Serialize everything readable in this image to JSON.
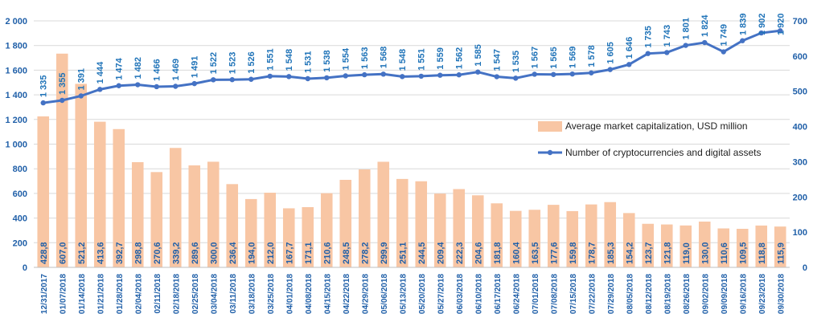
{
  "chart_data": {
    "type": "bar+line",
    "categories": [
      "12/31/2017",
      "01/07/2018",
      "01/14/2018",
      "01/21/2018",
      "01/28/2018",
      "02/04/2018",
      "02/11/2018",
      "02/18/2018",
      "02/25/2018",
      "03/04/2018",
      "03/11/2018",
      "03/18/2018",
      "03/25/2018",
      "04/01/2018",
      "04/08/2018",
      "04/15/2018",
      "04/22/2018",
      "04/29/2018",
      "05/06/2018",
      "05/13/2018",
      "05/20/2018",
      "05/27/2018",
      "06/03/2018",
      "06/10/2018",
      "06/17/2018",
      "06/24/2018",
      "07/01/2018",
      "07/08/2018",
      "07/15/2018",
      "07/22/2018",
      "07/29/2018",
      "08/05/2018",
      "08/12/2018",
      "08/19/2018",
      "08/26/2018",
      "09/02/2018",
      "09/09/2018",
      "09/16/2018",
      "09/23/2018",
      "09/30/2018"
    ],
    "bar_series": {
      "name": "Average market capitalization, USD million",
      "axis": "right",
      "color": "#f8c6a4",
      "values": [
        428.8,
        607.0,
        521.2,
        413.6,
        392.7,
        298.8,
        270.6,
        339.2,
        289.6,
        300.0,
        236.4,
        194.0,
        212.0,
        167.7,
        171.1,
        210.6,
        248.5,
        278.2,
        299.9,
        251.1,
        244.5,
        209.4,
        222.3,
        204.6,
        181.8,
        160.4,
        163.5,
        177.6,
        159.8,
        178.7,
        185.3,
        154.2,
        123.7,
        121.8,
        119.0,
        130.0,
        110.6,
        109.5,
        118.8,
        115.9
      ],
      "labels": [
        "428,8",
        "607,0",
        "521,2",
        "413,6",
        "392,7",
        "298,8",
        "270,6",
        "339,2",
        "289,6",
        "300,0",
        "236,4",
        "194,0",
        "212,0",
        "167,7",
        "171,1",
        "210,6",
        "248,5",
        "278,2",
        "299,9",
        "251,1",
        "244,5",
        "209,4",
        "222,3",
        "204,6",
        "181,8",
        "160,4",
        "163,5",
        "177,6",
        "159,8",
        "178,7",
        "185,3",
        "154,2",
        "123,7",
        "121,8",
        "119,0",
        "130,0",
        "110,6",
        "109,5",
        "118,8",
        "115,9"
      ]
    },
    "line_series": {
      "name": "Number of cryptocurrencies and digital assets",
      "axis": "left",
      "color": "#4472c4",
      "values": [
        1335,
        1355,
        1391,
        1444,
        1474,
        1482,
        1466,
        1469,
        1491,
        1522,
        1523,
        1526,
        1551,
        1548,
        1531,
        1538,
        1554,
        1563,
        1568,
        1548,
        1551,
        1559,
        1562,
        1585,
        1547,
        1535,
        1567,
        1565,
        1569,
        1578,
        1605,
        1646,
        1735,
        1743,
        1801,
        1824,
        1749,
        1839,
        1902,
        1920
      ]
    },
    "left_axis": {
      "ylim": [
        0,
        2000
      ],
      "ticks": [
        0,
        200,
        400,
        600,
        800,
        1000,
        1200,
        1400,
        1600,
        1800,
        2000
      ],
      "tick_labels": [
        "0",
        "200",
        "400",
        "600",
        "800",
        "1 000",
        "1 200",
        "1 400",
        "1 600",
        "1 800",
        "2 000"
      ]
    },
    "right_axis": {
      "ylim": [
        0,
        700
      ],
      "ticks": [
        0,
        100,
        200,
        300,
        400,
        500,
        600,
        700
      ],
      "tick_labels": [
        "0",
        "100",
        "200",
        "300",
        "400",
        "500",
        "600",
        "700"
      ]
    },
    "legend": {
      "placement": "right-middle"
    },
    "grid": true,
    "colors": {
      "axis_text": "#1f5fa8",
      "grid": "#d9d9d9",
      "line_label": "#1f73b8"
    }
  }
}
